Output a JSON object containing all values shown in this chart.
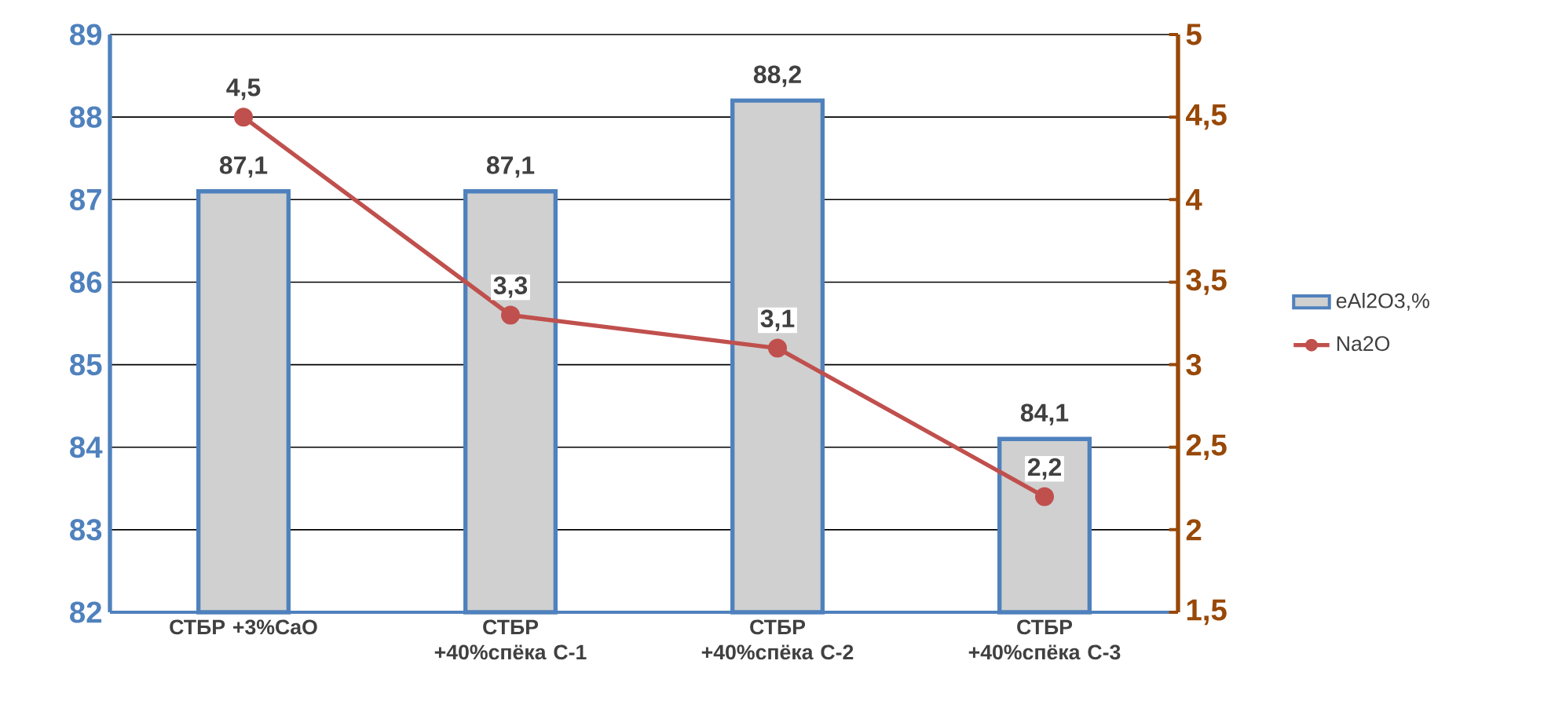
{
  "chart_data": {
    "type": "bar",
    "categories": [
      "СТБР +3%CaO",
      "СТБР +40%спёка С-1",
      "СТБР +40%спёка С-2",
      "СТБР +40%спёка С-3"
    ],
    "series": [
      {
        "name": "eAl2O3,%",
        "color": "#4f81bd",
        "values": [
          87.1,
          87.1,
          88.2,
          84.1
        ],
        "value_labels": [
          "87,1",
          "87,1",
          "88,2",
          "84,1"
        ]
      },
      {
        "name": "Na2O",
        "type": "line",
        "axis": "y2",
        "color": "#c0504d",
        "marker": "circle",
        "values": [
          4.5,
          3.3,
          3.1,
          2.2
        ],
        "value_labels": [
          "4,5",
          "3,3",
          "3,1",
          "2,2"
        ]
      }
    ],
    "ylim": [
      82,
      89
    ],
    "yticks": [
      82,
      83,
      84,
      85,
      86,
      87,
      88,
      89
    ],
    "y2lim": [
      1.5,
      5
    ],
    "y2ticks": [
      {
        "value": 1.5,
        "label": "1,5"
      },
      2,
      {
        "value": 2.5,
        "label": "2,5"
      },
      3,
      {
        "value": 3.5,
        "label": "3,5"
      },
      4,
      {
        "value": 4.5,
        "label": "4,5"
      },
      5
    ],
    "grid": "y",
    "legend": "right"
  }
}
